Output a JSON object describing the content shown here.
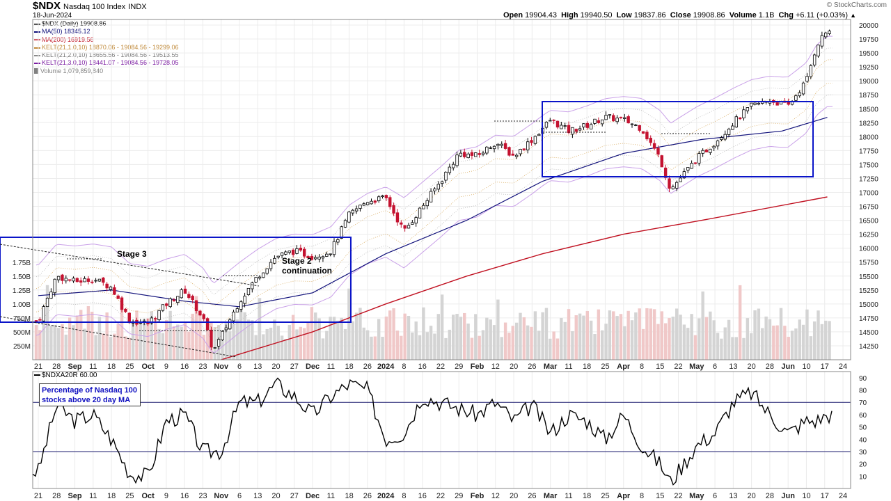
{
  "header": {
    "symbol": "$NDX",
    "name": "Nasdaq 100 Index",
    "exchange": "INDX",
    "date": "18-Jun-2024",
    "open_label": "Open",
    "open": "19904.43",
    "high_label": "High",
    "high": "19940.50",
    "low_label": "Low",
    "low": "19837.86",
    "close_label": "Close",
    "close": "19908.86",
    "volume_label": "Volume",
    "volume": "1.1B",
    "chg_label": "Chg",
    "chg": "+6.11 (+0.03%)",
    "chg_icon": "triangle-up-icon",
    "copyright": "© StockCharts.com"
  },
  "legend": [
    {
      "text": "$NDX (Daily) 19908.86",
      "color": "#000000",
      "kind": "candle"
    },
    {
      "text": "MA(50) 18345.12",
      "color": "#10107a",
      "kind": "line"
    },
    {
      "text": "MA(200) 16919.56",
      "color": "#c01020",
      "kind": "line"
    },
    {
      "text": "KELT(21,1.0,10) 18870.06 - 19084.56 - 19299.06",
      "color": "#c08a3a",
      "kind": "line"
    },
    {
      "text": "KELT(21,2.0,10) 18655.56 - 19084.56 - 19513.55",
      "color": "#8a8a8a",
      "kind": "line"
    },
    {
      "text": "KELT(21,3.0,10) 18441.07 - 19084.56 - 19728.05",
      "color": "#7a1aa0",
      "kind": "line"
    },
    {
      "text": "Volume 1,079,859,840",
      "color": "#808080",
      "kind": "volume"
    }
  ],
  "annotations": {
    "stage3": "Stage 3",
    "stage2_line1": "Stage 2",
    "stage2_line2": "continuation",
    "indicator_box_line1": "Percentage of Nasdaq 100",
    "indicator_box_line2": "stocks above 20 day MA",
    "indicator_legend": "$NDXA20R 60.00"
  },
  "colors": {
    "up_candle": "#ffffff",
    "down_candle": "#c41230",
    "ma50": "#10107a",
    "ma200": "#c01020",
    "box": "#0a14c8",
    "volume_up": "#d4d4d4",
    "volume_down": "#f0c8c8"
  },
  "chart_data": [
    {
      "type": "candlestick",
      "title": "$NDX Nasdaq 100 Index (Daily)",
      "y_scale": "linear",
      "ylim": [
        14000,
        20100
      ],
      "y_ticks": [
        14250,
        14500,
        14750,
        15000,
        15250,
        15500,
        15750,
        16000,
        16250,
        16500,
        16750,
        17000,
        17250,
        17500,
        17750,
        18000,
        18250,
        18500,
        18750,
        19000,
        19250,
        19500,
        19750,
        20000
      ],
      "volume_ticks": [
        "250M",
        "500M",
        "750M",
        "1.00B",
        "1.25B",
        "1.50B",
        "1.75B"
      ],
      "x_tick_labels": [
        "21",
        "28",
        "Sep",
        "11",
        "18",
        "25",
        "Oct",
        "9",
        "16",
        "23",
        "Nov",
        "6",
        "13",
        "20",
        "27",
        "Dec",
        "11",
        "18",
        "26",
        "2024",
        "8",
        "16",
        "22",
        "29",
        "Feb",
        "12",
        "20",
        "26",
        "Mar",
        "11",
        "18",
        "25",
        "Apr",
        "8",
        "15",
        "22",
        "May",
        "6",
        "13",
        "20",
        "28",
        "Jun",
        "10",
        "17",
        "24"
      ],
      "close_path": [
        {
          "x": "2023-08-21",
          "y": 14700
        },
        {
          "x": "2023-08-28",
          "y": 15500
        },
        {
          "x": "2023-09-05",
          "y": 15400
        },
        {
          "x": "2023-09-11",
          "y": 15450
        },
        {
          "x": "2023-09-18",
          "y": 15300
        },
        {
          "x": "2023-09-25",
          "y": 14700
        },
        {
          "x": "2023-10-03",
          "y": 14650
        },
        {
          "x": "2023-10-09",
          "y": 15000
        },
        {
          "x": "2023-10-16",
          "y": 15250
        },
        {
          "x": "2023-10-23",
          "y": 14750
        },
        {
          "x": "2023-10-27",
          "y": 14150
        },
        {
          "x": "2023-11-06",
          "y": 15050
        },
        {
          "x": "2023-11-13",
          "y": 15500
        },
        {
          "x": "2023-11-20",
          "y": 15850
        },
        {
          "x": "2023-11-27",
          "y": 15950
        },
        {
          "x": "2023-12-04",
          "y": 15850
        },
        {
          "x": "2023-12-11",
          "y": 15950
        },
        {
          "x": "2023-12-18",
          "y": 16600
        },
        {
          "x": "2023-12-26",
          "y": 16850
        },
        {
          "x": "2024-01-02",
          "y": 16900
        },
        {
          "x": "2024-01-08",
          "y": 16300
        },
        {
          "x": "2024-01-16",
          "y": 16750
        },
        {
          "x": "2024-01-22",
          "y": 17200
        },
        {
          "x": "2024-01-29",
          "y": 17700
        },
        {
          "x": "2024-02-05",
          "y": 17650
        },
        {
          "x": "2024-02-12",
          "y": 17900
        },
        {
          "x": "2024-02-20",
          "y": 17650
        },
        {
          "x": "2024-02-26",
          "y": 17950
        },
        {
          "x": "2024-03-04",
          "y": 18300
        },
        {
          "x": "2024-03-11",
          "y": 18100
        },
        {
          "x": "2024-03-18",
          "y": 18200
        },
        {
          "x": "2024-03-25",
          "y": 18350
        },
        {
          "x": "2024-04-01",
          "y": 18300
        },
        {
          "x": "2024-04-08",
          "y": 18150
        },
        {
          "x": "2024-04-15",
          "y": 17600
        },
        {
          "x": "2024-04-19",
          "y": 17050
        },
        {
          "x": "2024-04-29",
          "y": 17600
        },
        {
          "x": "2024-05-06",
          "y": 17900
        },
        {
          "x": "2024-05-13",
          "y": 18250
        },
        {
          "x": "2024-05-20",
          "y": 18550
        },
        {
          "x": "2024-05-28",
          "y": 18650
        },
        {
          "x": "2024-06-03",
          "y": 18550
        },
        {
          "x": "2024-06-10",
          "y": 19000
        },
        {
          "x": "2024-06-14",
          "y": 19650
        },
        {
          "x": "2024-06-18",
          "y": 19908.86
        }
      ],
      "ma50_path": [
        {
          "x": "2023-08-21",
          "y": 15150
        },
        {
          "x": "2023-09-18",
          "y": 15250
        },
        {
          "x": "2023-10-16",
          "y": 15050
        },
        {
          "x": "2023-11-06",
          "y": 14950
        },
        {
          "x": "2023-12-04",
          "y": 15200
        },
        {
          "x": "2024-01-02",
          "y": 15900
        },
        {
          "x": "2024-02-01",
          "y": 16500
        },
        {
          "x": "2024-03-01",
          "y": 17200
        },
        {
          "x": "2024-04-01",
          "y": 17700
        },
        {
          "x": "2024-05-01",
          "y": 17950
        },
        {
          "x": "2024-06-01",
          "y": 18100
        },
        {
          "x": "2024-06-18",
          "y": 18345.12
        }
      ],
      "ma200_path": [
        {
          "x": "2023-10-30",
          "y": 14000
        },
        {
          "x": "2023-12-04",
          "y": 14500
        },
        {
          "x": "2024-01-02",
          "y": 15000
        },
        {
          "x": "2024-02-01",
          "y": 15500
        },
        {
          "x": "2024-03-01",
          "y": 15900
        },
        {
          "x": "2024-04-01",
          "y": 16250
        },
        {
          "x": "2024-05-01",
          "y": 16500
        },
        {
          "x": "2024-06-18",
          "y": 16919.56
        }
      ]
    },
    {
      "type": "line",
      "title": "$NDXA20R",
      "ylim": [
        0,
        95
      ],
      "y_ticks": [
        10,
        20,
        30,
        40,
        50,
        60,
        70,
        80,
        90
      ],
      "reference_lines": [
        70,
        30
      ],
      "x": [
        "2023-08-21",
        "2023-08-28",
        "2023-09-05",
        "2023-09-11",
        "2023-09-18",
        "2023-09-25",
        "2023-10-03",
        "2023-10-09",
        "2023-10-16",
        "2023-10-23",
        "2023-10-30",
        "2023-11-06",
        "2023-11-13",
        "2023-11-20",
        "2023-11-27",
        "2023-12-04",
        "2023-12-11",
        "2023-12-18",
        "2023-12-26",
        "2024-01-02",
        "2024-01-08",
        "2024-01-16",
        "2024-01-22",
        "2024-01-29",
        "2024-02-05",
        "2024-02-12",
        "2024-02-20",
        "2024-02-26",
        "2024-03-04",
        "2024-03-11",
        "2024-03-18",
        "2024-03-25",
        "2024-04-01",
        "2024-04-08",
        "2024-04-15",
        "2024-04-19",
        "2024-04-29",
        "2024-05-06",
        "2024-05-13",
        "2024-05-20",
        "2024-05-28",
        "2024-06-03",
        "2024-06-10",
        "2024-06-14",
        "2024-06-18"
      ],
      "values": [
        14,
        68,
        55,
        60,
        40,
        12,
        10,
        55,
        60,
        30,
        30,
        70,
        70,
        85,
        75,
        60,
        75,
        85,
        80,
        40,
        45,
        75,
        70,
        65,
        60,
        70,
        55,
        68,
        45,
        60,
        55,
        40,
        60,
        35,
        20,
        5,
        35,
        45,
        70,
        78,
        60,
        45,
        55,
        55,
        60
      ]
    }
  ]
}
